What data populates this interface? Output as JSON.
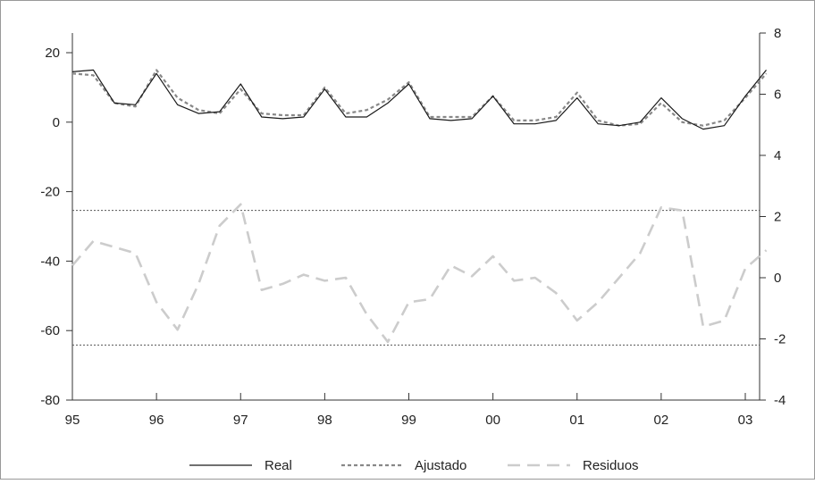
{
  "chart_data": {
    "type": "line",
    "x_tick_labels": [
      "95",
      "96",
      "97",
      "98",
      "99",
      "00",
      "01",
      "02",
      "03"
    ],
    "x_tick_values": [
      0,
      4,
      8,
      12,
      16,
      20,
      24,
      28,
      32
    ],
    "left_axis": {
      "ylim": [
        -80,
        30
      ],
      "ticks": [
        20,
        0,
        -20,
        -40,
        -60,
        -80
      ],
      "tick_labels": [
        "20",
        "0",
        "-20",
        "-40",
        "-60",
        "-80"
      ]
    },
    "right_axis": {
      "ylim": [
        -4,
        8
      ],
      "ticks": [
        8,
        6,
        4,
        2,
        0,
        -2,
        -4
      ],
      "tick_labels": [
        "8",
        "6",
        "4",
        "2",
        "0",
        "-2",
        "-4"
      ]
    },
    "x": [
      0,
      1,
      2,
      3,
      4,
      5,
      6,
      7,
      8,
      9,
      10,
      11,
      12,
      13,
      14,
      15,
      16,
      17,
      18,
      19,
      20,
      21,
      22,
      23,
      24,
      25,
      26,
      27,
      28,
      29,
      30,
      31,
      32,
      33
    ],
    "series": [
      {
        "name": "Real",
        "axis": "left",
        "color": "#1a1a1a",
        "style": "solid",
        "values": [
          14.5,
          15,
          5.5,
          5,
          14,
          5,
          2.5,
          3,
          11,
          1.5,
          1,
          1.5,
          9.5,
          1.5,
          1.5,
          5.5,
          11,
          1,
          0.5,
          1,
          7.5,
          -0.5,
          -0.5,
          0.5,
          7,
          -0.5,
          -1,
          0,
          7,
          1,
          -2,
          -1,
          7.5,
          15
        ]
      },
      {
        "name": "Ajustado",
        "axis": "left",
        "color": "#888888",
        "style": "dotted",
        "values": [
          14,
          13.5,
          5.5,
          4.5,
          15,
          7,
          3.5,
          2.5,
          9.5,
          2.5,
          2,
          2,
          10,
          2.5,
          3.5,
          6.5,
          11.5,
          1.5,
          1.5,
          1.5,
          7.5,
          0.5,
          0.5,
          1.5,
          8.5,
          0.5,
          -1,
          -0.5,
          5.5,
          0,
          -1,
          0.5,
          7,
          14
        ]
      },
      {
        "name": "Residuos",
        "axis": "right",
        "color": "#cccccc",
        "style": "dashed",
        "values": [
          0.4,
          1.2,
          1.0,
          0.8,
          -0.8,
          -1.7,
          -0.2,
          1.7,
          2.4,
          -0.4,
          -0.2,
          0.1,
          -0.1,
          0,
          -1.2,
          -2.1,
          -0.8,
          -0.7,
          0.4,
          0.05,
          0.7,
          -0.1,
          0,
          -0.5,
          -1.4,
          -0.8,
          0,
          0.8,
          2.3,
          2.2,
          -1.6,
          -1.4,
          0.3,
          0.9
        ]
      }
    ],
    "reference_lines": {
      "axis": "right",
      "style": "dotted",
      "color": "#555555",
      "values": [
        2.2,
        -2.2
      ]
    },
    "legend": {
      "placement": "bottom-center",
      "entries": [
        "Real",
        "Ajustado",
        "Residuos"
      ]
    },
    "grid": false
  }
}
